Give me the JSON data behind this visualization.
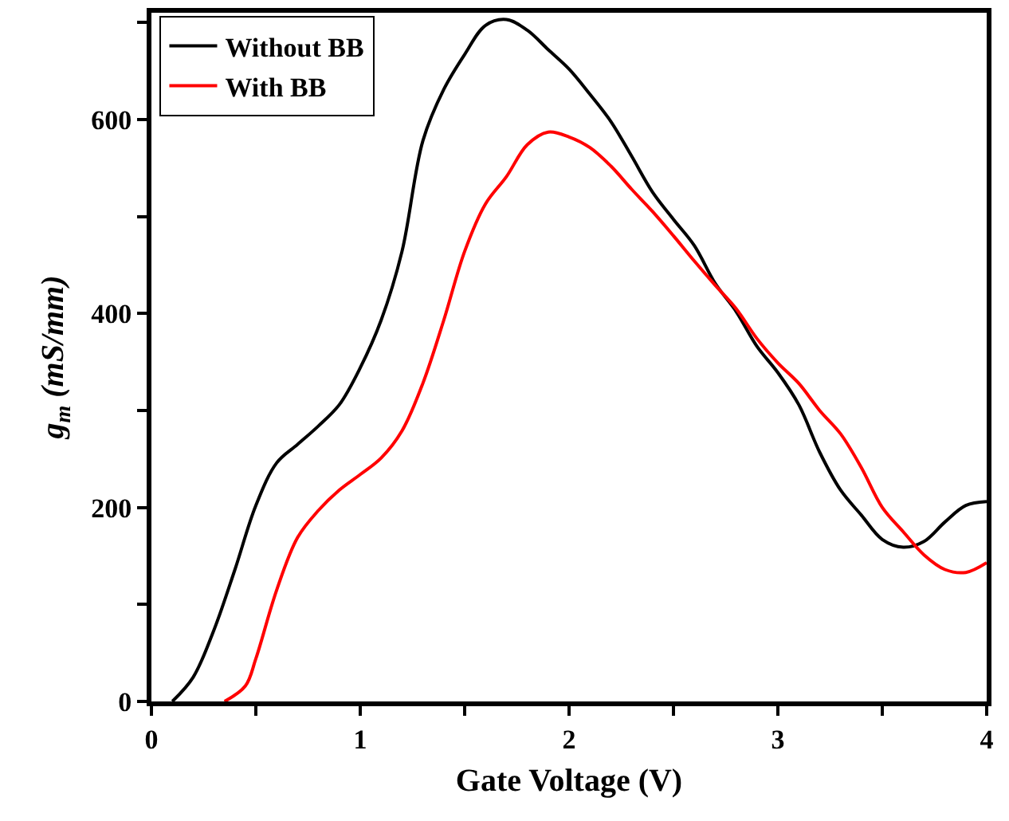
{
  "chart_data": {
    "type": "line",
    "xlabel": "Gate Voltage (V)",
    "ylabel": "g$_{m}$ (mS/mm)",
    "xlim": [
      0,
      4
    ],
    "ylim": [
      0,
      710
    ],
    "xticks": [
      0,
      {
        "value": 0.5,
        "label": null
      },
      1,
      {
        "value": 1.5,
        "label": null
      },
      2,
      {
        "value": 2.5,
        "label": null
      },
      3,
      {
        "value": 3.5,
        "label": null
      },
      4
    ],
    "yticks": [
      0,
      {
        "value": 100,
        "label": null
      },
      200,
      {
        "value": 300,
        "label": null
      },
      400,
      {
        "value": 500,
        "label": null
      },
      600,
      {
        "value": 700,
        "label": null
      }
    ],
    "grid": false,
    "legend": "top left",
    "line_style": "solid",
    "marker": "none",
    "series": [
      {
        "name": "Without BB",
        "color": "#000000",
        "x": [
          0.1,
          0.2,
          0.3,
          0.4,
          0.5,
          0.6,
          0.7,
          0.8,
          0.9,
          1.0,
          1.1,
          1.2,
          1.3,
          1.4,
          1.5,
          1.6,
          1.7,
          1.8,
          1.9,
          2.0,
          2.1,
          2.2,
          2.3,
          2.4,
          2.5,
          2.6,
          2.7,
          2.8,
          2.9,
          3.0,
          3.1,
          3.2,
          3.3,
          3.4,
          3.5,
          3.6,
          3.7,
          3.8,
          3.9,
          4.0
        ],
        "values": [
          0,
          25,
          74,
          136,
          202,
          246,
          265,
          284,
          306,
          344,
          393,
          464,
          578,
          631,
          667,
          697,
          703,
          692,
          672,
          652,
          626,
          598,
          562,
          525,
          497,
          470,
          431,
          402,
          366,
          339,
          306,
          257,
          218,
          192,
          167,
          159,
          165,
          185,
          202,
          206
        ]
      },
      {
        "name": "With BB",
        "color": "#ff0000",
        "x": [
          0.35,
          0.45,
          0.5,
          0.6,
          0.7,
          0.8,
          0.9,
          1.0,
          1.1,
          1.2,
          1.3,
          1.4,
          1.5,
          1.6,
          1.7,
          1.8,
          1.9,
          2.0,
          2.1,
          2.2,
          2.3,
          2.4,
          2.5,
          2.6,
          2.7,
          2.8,
          2.9,
          3.0,
          3.1,
          3.2,
          3.3,
          3.4,
          3.5,
          3.6,
          3.7,
          3.8,
          3.9,
          4.0
        ],
        "values": [
          0,
          16,
          44,
          115,
          169,
          197,
          218,
          234,
          251,
          279,
          328,
          393,
          464,
          513,
          541,
          574,
          587,
          582,
          571,
          552,
          528,
          505,
          480,
          454,
          429,
          405,
          374,
          349,
          328,
          300,
          276,
          241,
          200,
          175,
          151,
          136,
          133,
          143
        ]
      }
    ]
  }
}
